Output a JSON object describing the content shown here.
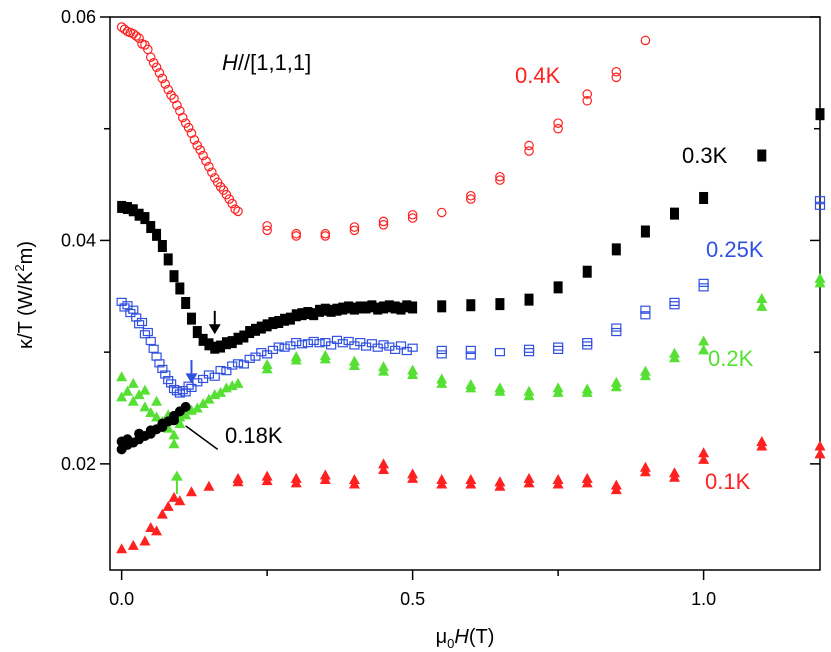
{
  "chart_data": {
    "type": "scatter",
    "title": "",
    "xlabel": "μ0H(T)",
    "xlabel_parts": {
      "mu": "μ",
      "sub": "0",
      "var": "H",
      "unit": "(T)"
    },
    "ylabel": "κ/T (W/K2m)",
    "ylabel_parts": {
      "pre": "κ/T (W/K",
      "sup": "2",
      "post": "m)"
    },
    "xlim": [
      -0.02,
      1.2
    ],
    "ylim": [
      0.0105,
      0.06
    ],
    "x_ticks": [
      0.0,
      0.5,
      1.0
    ],
    "x_tick_labels": [
      "0.0",
      "0.5",
      "1.0"
    ],
    "y_ticks": [
      0.02,
      0.04,
      0.06
    ],
    "y_tick_labels": [
      "0.02",
      "0.04",
      "0.06"
    ],
    "annotation_field": "H//[1,1,1]",
    "annotation_field_parts": {
      "var": "H",
      "rest": "//[1,1,1]"
    },
    "colors": {
      "red": "#ff2020",
      "black": "#000000",
      "blue": "#3050e0",
      "green": "#55e033"
    },
    "series": [
      {
        "name": "0.4K",
        "label": "0.4K",
        "color": "#ff2020",
        "marker": "open-circle",
        "x": [
          0.0,
          0.005,
          0.01,
          0.015,
          0.02,
          0.025,
          0.03,
          0.035,
          0.04,
          0.045,
          0.05,
          0.055,
          0.06,
          0.065,
          0.07,
          0.075,
          0.08,
          0.085,
          0.09,
          0.095,
          0.1,
          0.105,
          0.11,
          0.115,
          0.12,
          0.125,
          0.13,
          0.135,
          0.14,
          0.145,
          0.15,
          0.155,
          0.16,
          0.165,
          0.17,
          0.175,
          0.18,
          0.185,
          0.19,
          0.195,
          0.2,
          0.25,
          0.25,
          0.3,
          0.3,
          0.35,
          0.35,
          0.4,
          0.4,
          0.45,
          0.45,
          0.5,
          0.5,
          0.55,
          0.6,
          0.6,
          0.65,
          0.65,
          0.7,
          0.7,
          0.75,
          0.75,
          0.8,
          0.8,
          0.85,
          0.85,
          0.9
        ],
        "y": [
          0.0591,
          0.0589,
          0.0587,
          0.0586,
          0.0585,
          0.0583,
          0.0581,
          0.0576,
          0.0575,
          0.0571,
          0.0564,
          0.0559,
          0.0555,
          0.055,
          0.0545,
          0.054,
          0.0535,
          0.053,
          0.0527,
          0.0521,
          0.0516,
          0.051,
          0.0505,
          0.0501,
          0.0496,
          0.049,
          0.0485,
          0.0481,
          0.0476,
          0.0471,
          0.0466,
          0.0461,
          0.0456,
          0.0452,
          0.0448,
          0.0445,
          0.0441,
          0.0437,
          0.0433,
          0.0428,
          0.0426,
          0.0413,
          0.0409,
          0.0406,
          0.0404,
          0.0406,
          0.0404,
          0.0412,
          0.0409,
          0.0417,
          0.0414,
          0.0423,
          0.042,
          0.0425,
          0.044,
          0.0437,
          0.0457,
          0.0454,
          0.0485,
          0.048,
          0.0505,
          0.05,
          0.0531,
          0.0525,
          0.0551,
          0.0546,
          0.0579
        ]
      },
      {
        "name": "0.3K",
        "label": "0.3K",
        "color": "#000000",
        "marker": "filled-square",
        "x": [
          0.0,
          0.01,
          0.02,
          0.03,
          0.04,
          0.05,
          0.06,
          0.07,
          0.08,
          0.09,
          0.1,
          0.11,
          0.12,
          0.13,
          0.14,
          0.15,
          0.16,
          0.17,
          0.18,
          0.19,
          0.2,
          0.21,
          0.22,
          0.23,
          0.24,
          0.25,
          0.26,
          0.27,
          0.28,
          0.29,
          0.3,
          0.31,
          0.32,
          0.33,
          0.34,
          0.35,
          0.36,
          0.37,
          0.38,
          0.39,
          0.4,
          0.41,
          0.42,
          0.43,
          0.44,
          0.45,
          0.46,
          0.47,
          0.48,
          0.49,
          0.5,
          0.55,
          0.6,
          0.65,
          0.7,
          0.75,
          0.8,
          0.85,
          0.9,
          0.95,
          1.0,
          1.1,
          1.2
        ],
        "y": [
          0.043,
          0.0429,
          0.0427,
          0.0423,
          0.042,
          0.0412,
          0.0405,
          0.0395,
          0.0383,
          0.0368,
          0.0357,
          0.0344,
          0.033,
          0.0318,
          0.0311,
          0.0307,
          0.0304,
          0.0305,
          0.0308,
          0.0309,
          0.0312,
          0.0314,
          0.0318,
          0.032,
          0.0322,
          0.0324,
          0.0326,
          0.0327,
          0.0329,
          0.033,
          0.0333,
          0.0334,
          0.0335,
          0.0334,
          0.0337,
          0.0338,
          0.0337,
          0.0338,
          0.0339,
          0.034,
          0.0339,
          0.034,
          0.034,
          0.0341,
          0.0339,
          0.034,
          0.0341,
          0.034,
          0.0339,
          0.0341,
          0.034,
          0.0341,
          0.0342,
          0.0343,
          0.0347,
          0.0358,
          0.0372,
          0.0392,
          0.0408,
          0.0424,
          0.0438,
          0.0476,
          0.0513
        ]
      },
      {
        "name": "0.25K",
        "label": "0.25K",
        "color": "#3050e0",
        "marker": "open-square",
        "x": [
          0.0,
          0.005,
          0.01,
          0.015,
          0.02,
          0.025,
          0.03,
          0.035,
          0.04,
          0.045,
          0.05,
          0.055,
          0.06,
          0.065,
          0.07,
          0.075,
          0.08,
          0.085,
          0.09,
          0.095,
          0.1,
          0.105,
          0.11,
          0.115,
          0.12,
          0.13,
          0.14,
          0.15,
          0.16,
          0.17,
          0.18,
          0.19,
          0.2,
          0.21,
          0.22,
          0.23,
          0.24,
          0.25,
          0.26,
          0.27,
          0.28,
          0.29,
          0.3,
          0.31,
          0.32,
          0.33,
          0.34,
          0.35,
          0.36,
          0.37,
          0.38,
          0.39,
          0.4,
          0.41,
          0.42,
          0.43,
          0.44,
          0.45,
          0.46,
          0.47,
          0.48,
          0.49,
          0.5,
          0.55,
          0.55,
          0.6,
          0.6,
          0.65,
          0.7,
          0.7,
          0.75,
          0.75,
          0.8,
          0.8,
          0.85,
          0.85,
          0.9,
          0.9,
          0.95,
          0.95,
          1.0,
          1.0,
          1.2,
          1.2
        ],
        "y": [
          0.0345,
          0.034,
          0.0342,
          0.0335,
          0.0338,
          0.0331,
          0.0325,
          0.0327,
          0.0316,
          0.0318,
          0.031,
          0.0303,
          0.0296,
          0.029,
          0.0285,
          0.028,
          0.0275,
          0.0272,
          0.0267,
          0.0265,
          0.0263,
          0.0266,
          0.0264,
          0.027,
          0.0268,
          0.0273,
          0.0276,
          0.028,
          0.0278,
          0.0284,
          0.0283,
          0.0288,
          0.029,
          0.0289,
          0.0294,
          0.0296,
          0.03,
          0.0298,
          0.0302,
          0.0305,
          0.0304,
          0.0306,
          0.0309,
          0.0307,
          0.0308,
          0.031,
          0.0308,
          0.0309,
          0.0306,
          0.0311,
          0.0308,
          0.031,
          0.0306,
          0.0309,
          0.0305,
          0.0308,
          0.0304,
          0.0307,
          0.0305,
          0.0302,
          0.0306,
          0.0301,
          0.0304,
          0.0302,
          0.0298,
          0.0302,
          0.0297,
          0.03,
          0.0303,
          0.03,
          0.0305,
          0.0302,
          0.0309,
          0.0306,
          0.0322,
          0.0318,
          0.0338,
          0.0333,
          0.0345,
          0.0342,
          0.0362,
          0.0358,
          0.0436,
          0.0431
        ]
      },
      {
        "name": "0.2K",
        "label": "0.2K",
        "color": "#55e033",
        "marker": "filled-triangle",
        "x": [
          0.0,
          0.0,
          0.01,
          0.02,
          0.02,
          0.03,
          0.04,
          0.04,
          0.05,
          0.06,
          0.06,
          0.07,
          0.08,
          0.08,
          0.09,
          0.09,
          0.1,
          0.1,
          0.11,
          0.12,
          0.13,
          0.14,
          0.15,
          0.16,
          0.17,
          0.18,
          0.19,
          0.2,
          0.25,
          0.25,
          0.3,
          0.3,
          0.35,
          0.35,
          0.4,
          0.4,
          0.45,
          0.45,
          0.5,
          0.5,
          0.55,
          0.55,
          0.6,
          0.6,
          0.65,
          0.65,
          0.7,
          0.7,
          0.75,
          0.75,
          0.8,
          0.8,
          0.85,
          0.85,
          0.9,
          0.9,
          0.95,
          0.95,
          1.0,
          1.0,
          1.1,
          1.1,
          1.2,
          1.2
        ],
        "y": [
          0.0278,
          0.026,
          0.0265,
          0.0272,
          0.0256,
          0.0262,
          0.0251,
          0.0266,
          0.0246,
          0.0256,
          0.0242,
          0.0238,
          0.0232,
          0.0244,
          0.0226,
          0.0218,
          0.0236,
          0.0242,
          0.0244,
          0.0248,
          0.025,
          0.0254,
          0.0258,
          0.0262,
          0.0264,
          0.0268,
          0.027,
          0.0272,
          0.0289,
          0.0285,
          0.0296,
          0.0293,
          0.0297,
          0.0294,
          0.0292,
          0.0288,
          0.0287,
          0.0283,
          0.0284,
          0.028,
          0.0276,
          0.0272,
          0.0271,
          0.0268,
          0.0268,
          0.0265,
          0.0265,
          0.0261,
          0.0268,
          0.0264,
          0.0267,
          0.0264,
          0.0273,
          0.0269,
          0.0283,
          0.0279,
          0.0299,
          0.0295,
          0.031,
          0.0302,
          0.0348,
          0.0341,
          0.0366,
          0.0362
        ]
      },
      {
        "name": "0.18K",
        "label": "0.18K",
        "color": "#000000",
        "marker": "filled-circle",
        "x": [
          0.0,
          0.0,
          0.01,
          0.01,
          0.02,
          0.03,
          0.03,
          0.04,
          0.05,
          0.05,
          0.06,
          0.07,
          0.07,
          0.08,
          0.09,
          0.09,
          0.1,
          0.11
        ],
        "y": [
          0.022,
          0.0213,
          0.0217,
          0.0222,
          0.0219,
          0.0227,
          0.0222,
          0.0225,
          0.023,
          0.0227,
          0.0231,
          0.0236,
          0.0233,
          0.0238,
          0.0243,
          0.0239,
          0.0247,
          0.0251
        ]
      },
      {
        "name": "0.1K",
        "label": "0.1K",
        "color": "#ff2020",
        "marker": "filled-triangle",
        "x": [
          0.0,
          0.02,
          0.04,
          0.05,
          0.06,
          0.07,
          0.08,
          0.09,
          0.1,
          0.12,
          0.15,
          0.2,
          0.2,
          0.25,
          0.25,
          0.3,
          0.3,
          0.35,
          0.35,
          0.4,
          0.4,
          0.45,
          0.45,
          0.5,
          0.5,
          0.55,
          0.55,
          0.6,
          0.6,
          0.65,
          0.65,
          0.7,
          0.7,
          0.75,
          0.75,
          0.8,
          0.8,
          0.85,
          0.85,
          0.9,
          0.9,
          0.95,
          0.95,
          1.0,
          1.0,
          1.1,
          1.1,
          1.2,
          1.2
        ],
        "y": [
          0.0124,
          0.0127,
          0.0131,
          0.0143,
          0.014,
          0.0155,
          0.0162,
          0.017,
          0.0167,
          0.0175,
          0.018,
          0.0187,
          0.0184,
          0.0189,
          0.0185,
          0.0187,
          0.0183,
          0.019,
          0.0186,
          0.0186,
          0.0182,
          0.02,
          0.0195,
          0.0191,
          0.0187,
          0.0186,
          0.0182,
          0.0186,
          0.0182,
          0.0184,
          0.018,
          0.0187,
          0.0183,
          0.0186,
          0.0182,
          0.0187,
          0.0183,
          0.0181,
          0.0177,
          0.0197,
          0.0193,
          0.0192,
          0.0188,
          0.021,
          0.0204,
          0.022,
          0.0216,
          0.0216,
          0.0209
        ]
      }
    ],
    "arrows": [
      {
        "name": "black-arrow",
        "color": "#000000",
        "x": 0.16,
        "y_tail": 0.0337,
        "y_head": 0.0316
      },
      {
        "name": "blue-arrow",
        "color": "#3050e0",
        "x": 0.12,
        "y_tail": 0.0293,
        "y_head": 0.0272
      },
      {
        "name": "green-arrow",
        "color": "#55e033",
        "x": 0.095,
        "y_tail": 0.0173,
        "y_head": 0.0194
      }
    ],
    "leader_line": {
      "x1": 0.11,
      "y1": 0.0234,
      "x2": 0.165,
      "y2": 0.0213
    }
  }
}
